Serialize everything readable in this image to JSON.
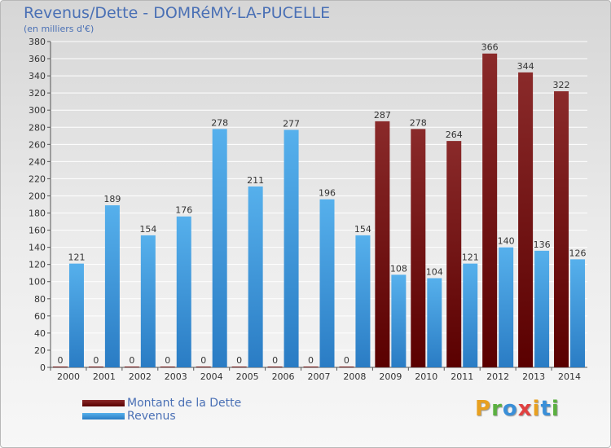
{
  "chart_data": {
    "type": "bar",
    "title": "Revenus/Dette - DOMRéMY-LA-PUCELLE",
    "subtitle": "(en milliers d'€)",
    "categories": [
      "2000",
      "2001",
      "2002",
      "2003",
      "2004",
      "2005",
      "2006",
      "2007",
      "2008",
      "2009",
      "2010",
      "2011",
      "2012",
      "2013",
      "2014"
    ],
    "series": [
      {
        "name": "Montant de la Dette",
        "color": "#7a1010",
        "values": [
          0,
          0,
          0,
          0,
          0,
          0,
          0,
          0,
          0,
          287,
          278,
          264,
          366,
          344,
          322
        ]
      },
      {
        "name": "Revenus",
        "color": "#3a9ae0",
        "values": [
          121,
          189,
          154,
          176,
          278,
          211,
          277,
          196,
          154,
          108,
          104,
          121,
          140,
          136,
          126
        ]
      }
    ],
    "ylim": [
      0,
      380
    ],
    "yticks": [
      0,
      20,
      40,
      60,
      80,
      100,
      120,
      140,
      160,
      180,
      200,
      220,
      240,
      260,
      280,
      300,
      320,
      340,
      360,
      380
    ],
    "grid": true,
    "legend_position": "bottom-left"
  },
  "brand": {
    "letters": [
      "P",
      "r",
      "o",
      "x",
      "i",
      "t",
      "i"
    ],
    "colors": [
      "#e8a020",
      "#5bb040",
      "#3a8fd8",
      "#e04040",
      "#e8a020",
      "#3a8fd8",
      "#5bb040"
    ]
  }
}
